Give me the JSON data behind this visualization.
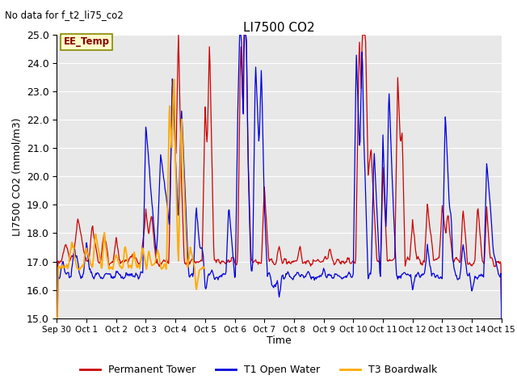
{
  "title": "LI7500 CO2",
  "subtitle": "No data for f_t2_li75_co2",
  "ylabel": "LI7500 CO2 (mmol/m3)",
  "xlabel": "Time",
  "ylim": [
    15.0,
    25.0
  ],
  "yticks": [
    15.0,
    16.0,
    17.0,
    18.0,
    19.0,
    20.0,
    21.0,
    22.0,
    23.0,
    24.0,
    25.0
  ],
  "xtick_labels": [
    "Sep 30",
    "Oct 1",
    "Oct 2",
    "Oct 3",
    "Oct 4",
    "Oct 5",
    "Oct 6",
    "Oct 7",
    "Oct 8",
    "Oct 9",
    "Oct 10",
    "Oct 11",
    "Oct 12",
    "Oct 13",
    "Oct 14",
    "Oct 15"
  ],
  "colors": {
    "red": "#cc0000",
    "blue": "#0000dd",
    "orange": "#ffaa00",
    "bg": "#e8e8e8",
    "grid": "#ffffff"
  },
  "legend": [
    "Permanent Tower",
    "T1 Open Water",
    "T3 Boardwalk"
  ],
  "ee_temp_label": "EE_Temp",
  "ee_temp_box_color": "#ffffcc",
  "ee_temp_text_color": "#880000"
}
